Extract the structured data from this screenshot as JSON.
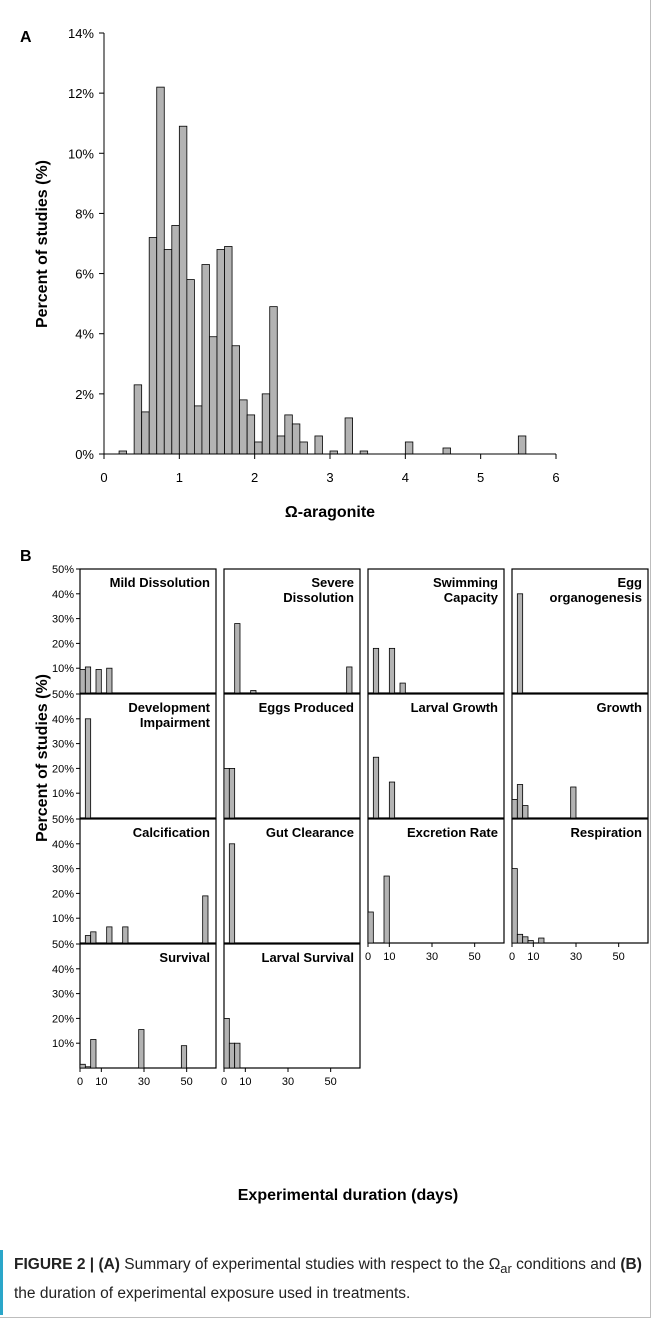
{
  "chart_data": [
    {
      "panel": "A",
      "type": "bar",
      "title": "",
      "xlabel": "Ω-aragonite",
      "ylabel": "Percent of studies (%)",
      "xlim": [
        0,
        6
      ],
      "ylim": [
        0,
        14
      ],
      "xticks": [
        "0",
        "1",
        "2",
        "3",
        "4",
        "5",
        "6"
      ],
      "yticks": [
        "0%",
        "2%",
        "4%",
        "6%",
        "8%",
        "10%",
        "12%",
        "14%"
      ],
      "bin_width": 0.1,
      "x": [
        0.2,
        0.4,
        0.5,
        0.6,
        0.7,
        0.8,
        0.9,
        1.0,
        1.1,
        1.2,
        1.3,
        1.4,
        1.5,
        1.6,
        1.7,
        1.8,
        1.9,
        2.0,
        2.1,
        2.2,
        2.3,
        2.4,
        2.5,
        2.6,
        2.8,
        3.0,
        3.2,
        3.4,
        4.0,
        4.5,
        5.5
      ],
      "values": [
        0.1,
        2.3,
        1.4,
        7.2,
        12.2,
        6.8,
        7.6,
        10.9,
        5.8,
        1.6,
        6.3,
        3.9,
        6.8,
        6.9,
        3.6,
        1.8,
        1.3,
        0.4,
        2.0,
        4.9,
        0.6,
        1.3,
        1.0,
        0.4,
        0.6,
        0.1,
        1.2,
        0.1,
        0.4,
        0.2,
        0.6
      ]
    },
    {
      "panel": "B",
      "type": "bar",
      "xlabel": "Experimental duration (days)",
      "ylabel": "Percent of studies (%)",
      "xlim": [
        0,
        60
      ],
      "ylim": [
        0,
        50
      ],
      "xticks": [
        "0",
        "10",
        "30",
        "50"
      ],
      "yticks": [
        "10%",
        "20%",
        "30%",
        "40%",
        "50%"
      ],
      "panels": [
        {
          "name": "Mild Dissolution",
          "bars": [
            [
              0,
              9.5
            ],
            [
              2.5,
              10.5
            ],
            [
              7.5,
              9.5
            ],
            [
              12.5,
              10.0
            ]
          ]
        },
        {
          "name": "Severe Dissolution",
          "bars": [
            [
              5,
              28.0
            ],
            [
              12.5,
              1.0
            ],
            [
              57.5,
              10.5
            ]
          ]
        },
        {
          "name": "Swimming Capacity",
          "bars": [
            [
              2.5,
              18.0
            ],
            [
              10,
              18.0
            ],
            [
              15,
              4.0
            ]
          ]
        },
        {
          "name": "Egg organogenesis",
          "bars": [
            [
              2.5,
              40.0
            ]
          ]
        },
        {
          "name": "Development Impairment",
          "bars": [
            [
              2.5,
              40.0
            ]
          ]
        },
        {
          "name": "Eggs Produced",
          "bars": [
            [
              0,
              20.0
            ],
            [
              2.5,
              20.0
            ]
          ]
        },
        {
          "name": "Larval Growth",
          "bars": [
            [
              2.5,
              24.5
            ],
            [
              10,
              14.5
            ]
          ]
        },
        {
          "name": "Growth",
          "bars": [
            [
              0,
              7.5
            ],
            [
              2.5,
              13.5
            ],
            [
              5,
              5.0
            ],
            [
              27.5,
              12.5
            ]
          ]
        },
        {
          "name": "Calcification",
          "bars": [
            [
              2.5,
              3.0
            ],
            [
              5,
              4.5
            ],
            [
              12.5,
              6.5
            ],
            [
              20,
              6.5
            ],
            [
              57.5,
              19.0
            ]
          ]
        },
        {
          "name": "Gut Clearance",
          "bars": [
            [
              2.5,
              40.0
            ]
          ]
        },
        {
          "name": "Excretion Rate",
          "bars": [
            [
              0,
              12.5
            ],
            [
              7.5,
              27.0
            ]
          ]
        },
        {
          "name": "Respiration",
          "bars": [
            [
              0,
              30.0
            ],
            [
              2.5,
              3.5
            ],
            [
              5,
              2.5
            ],
            [
              7.5,
              1.0
            ],
            [
              12.5,
              2.0
            ]
          ]
        },
        {
          "name": "Survival",
          "bars": [
            [
              0,
              1.5
            ],
            [
              2.5,
              0.5
            ],
            [
              5,
              11.5
            ],
            [
              27.5,
              15.5
            ],
            [
              47.5,
              9.0
            ]
          ]
        },
        {
          "name": "Larval Survival",
          "bars": [
            [
              0,
              20.0
            ],
            [
              2.5,
              10.0
            ],
            [
              5,
              10.0
            ]
          ]
        }
      ]
    }
  ],
  "panel_letters": {
    "a": "A",
    "b": "B"
  },
  "caption": {
    "figure_label": "FIGURE 2 |",
    "part_a": "(A)",
    "text_1": " Summary of experimental studies with respect to the Ω",
    "subscript": "ar",
    "text_2": " conditions and ",
    "part_b": "(B)",
    "text_3": " the duration of experimental exposure used in treatments."
  }
}
